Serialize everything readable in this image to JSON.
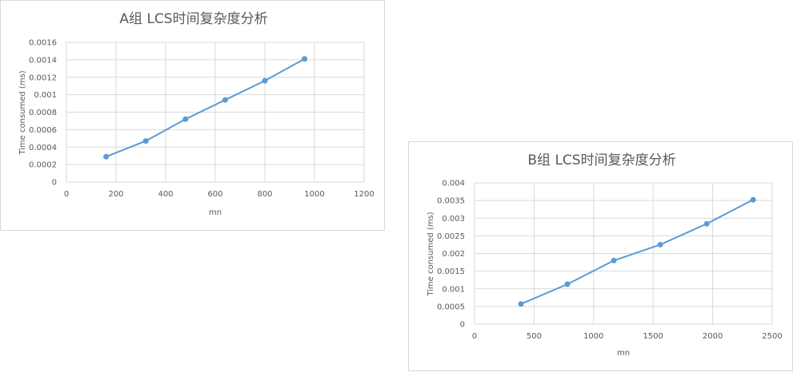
{
  "chart_data": [
    {
      "type": "line",
      "title": "A组 LCS时间复杂度分析",
      "xlabel": "mn",
      "ylabel": "Time consumed (ms)",
      "xlim": [
        0,
        1200
      ],
      "ylim": [
        0,
        0.0016
      ],
      "x_ticks": [
        "0",
        "200",
        "400",
        "600",
        "800",
        "1000",
        "1200"
      ],
      "y_ticks": [
        "0",
        "0.0002",
        "0.0004",
        "0.0006",
        "0.0008",
        "0.001",
        "0.0012",
        "0.0014",
        "0.0016"
      ],
      "grid": true,
      "series": [
        {
          "x": [
            160,
            320,
            480,
            640,
            800,
            960
          ],
          "y": [
            0.00029,
            0.00047,
            0.00072,
            0.00094,
            0.00116,
            0.00141
          ]
        }
      ]
    },
    {
      "type": "line",
      "title": "B组 LCS时间复杂度分析",
      "xlabel": "mn",
      "ylabel": "Time consumed (ms)",
      "xlim": [
        0,
        2500
      ],
      "ylim": [
        0,
        0.004
      ],
      "x_ticks": [
        "0",
        "500",
        "1000",
        "1500",
        "2000",
        "2500"
      ],
      "y_ticks": [
        "0",
        "0.0005",
        "0.001",
        "0.0015",
        "0.002",
        "0.0025",
        "0.003",
        "0.0035",
        "0.004"
      ],
      "grid": true,
      "series": [
        {
          "x": [
            390,
            780,
            1170,
            1560,
            1950,
            2340
          ],
          "y": [
            0.00057,
            0.00113,
            0.0018,
            0.00225,
            0.00284,
            0.00352
          ]
        }
      ]
    }
  ],
  "colors": {
    "series": "#5b9bd5",
    "grid": "#d9d9d9",
    "text": "#595959"
  }
}
